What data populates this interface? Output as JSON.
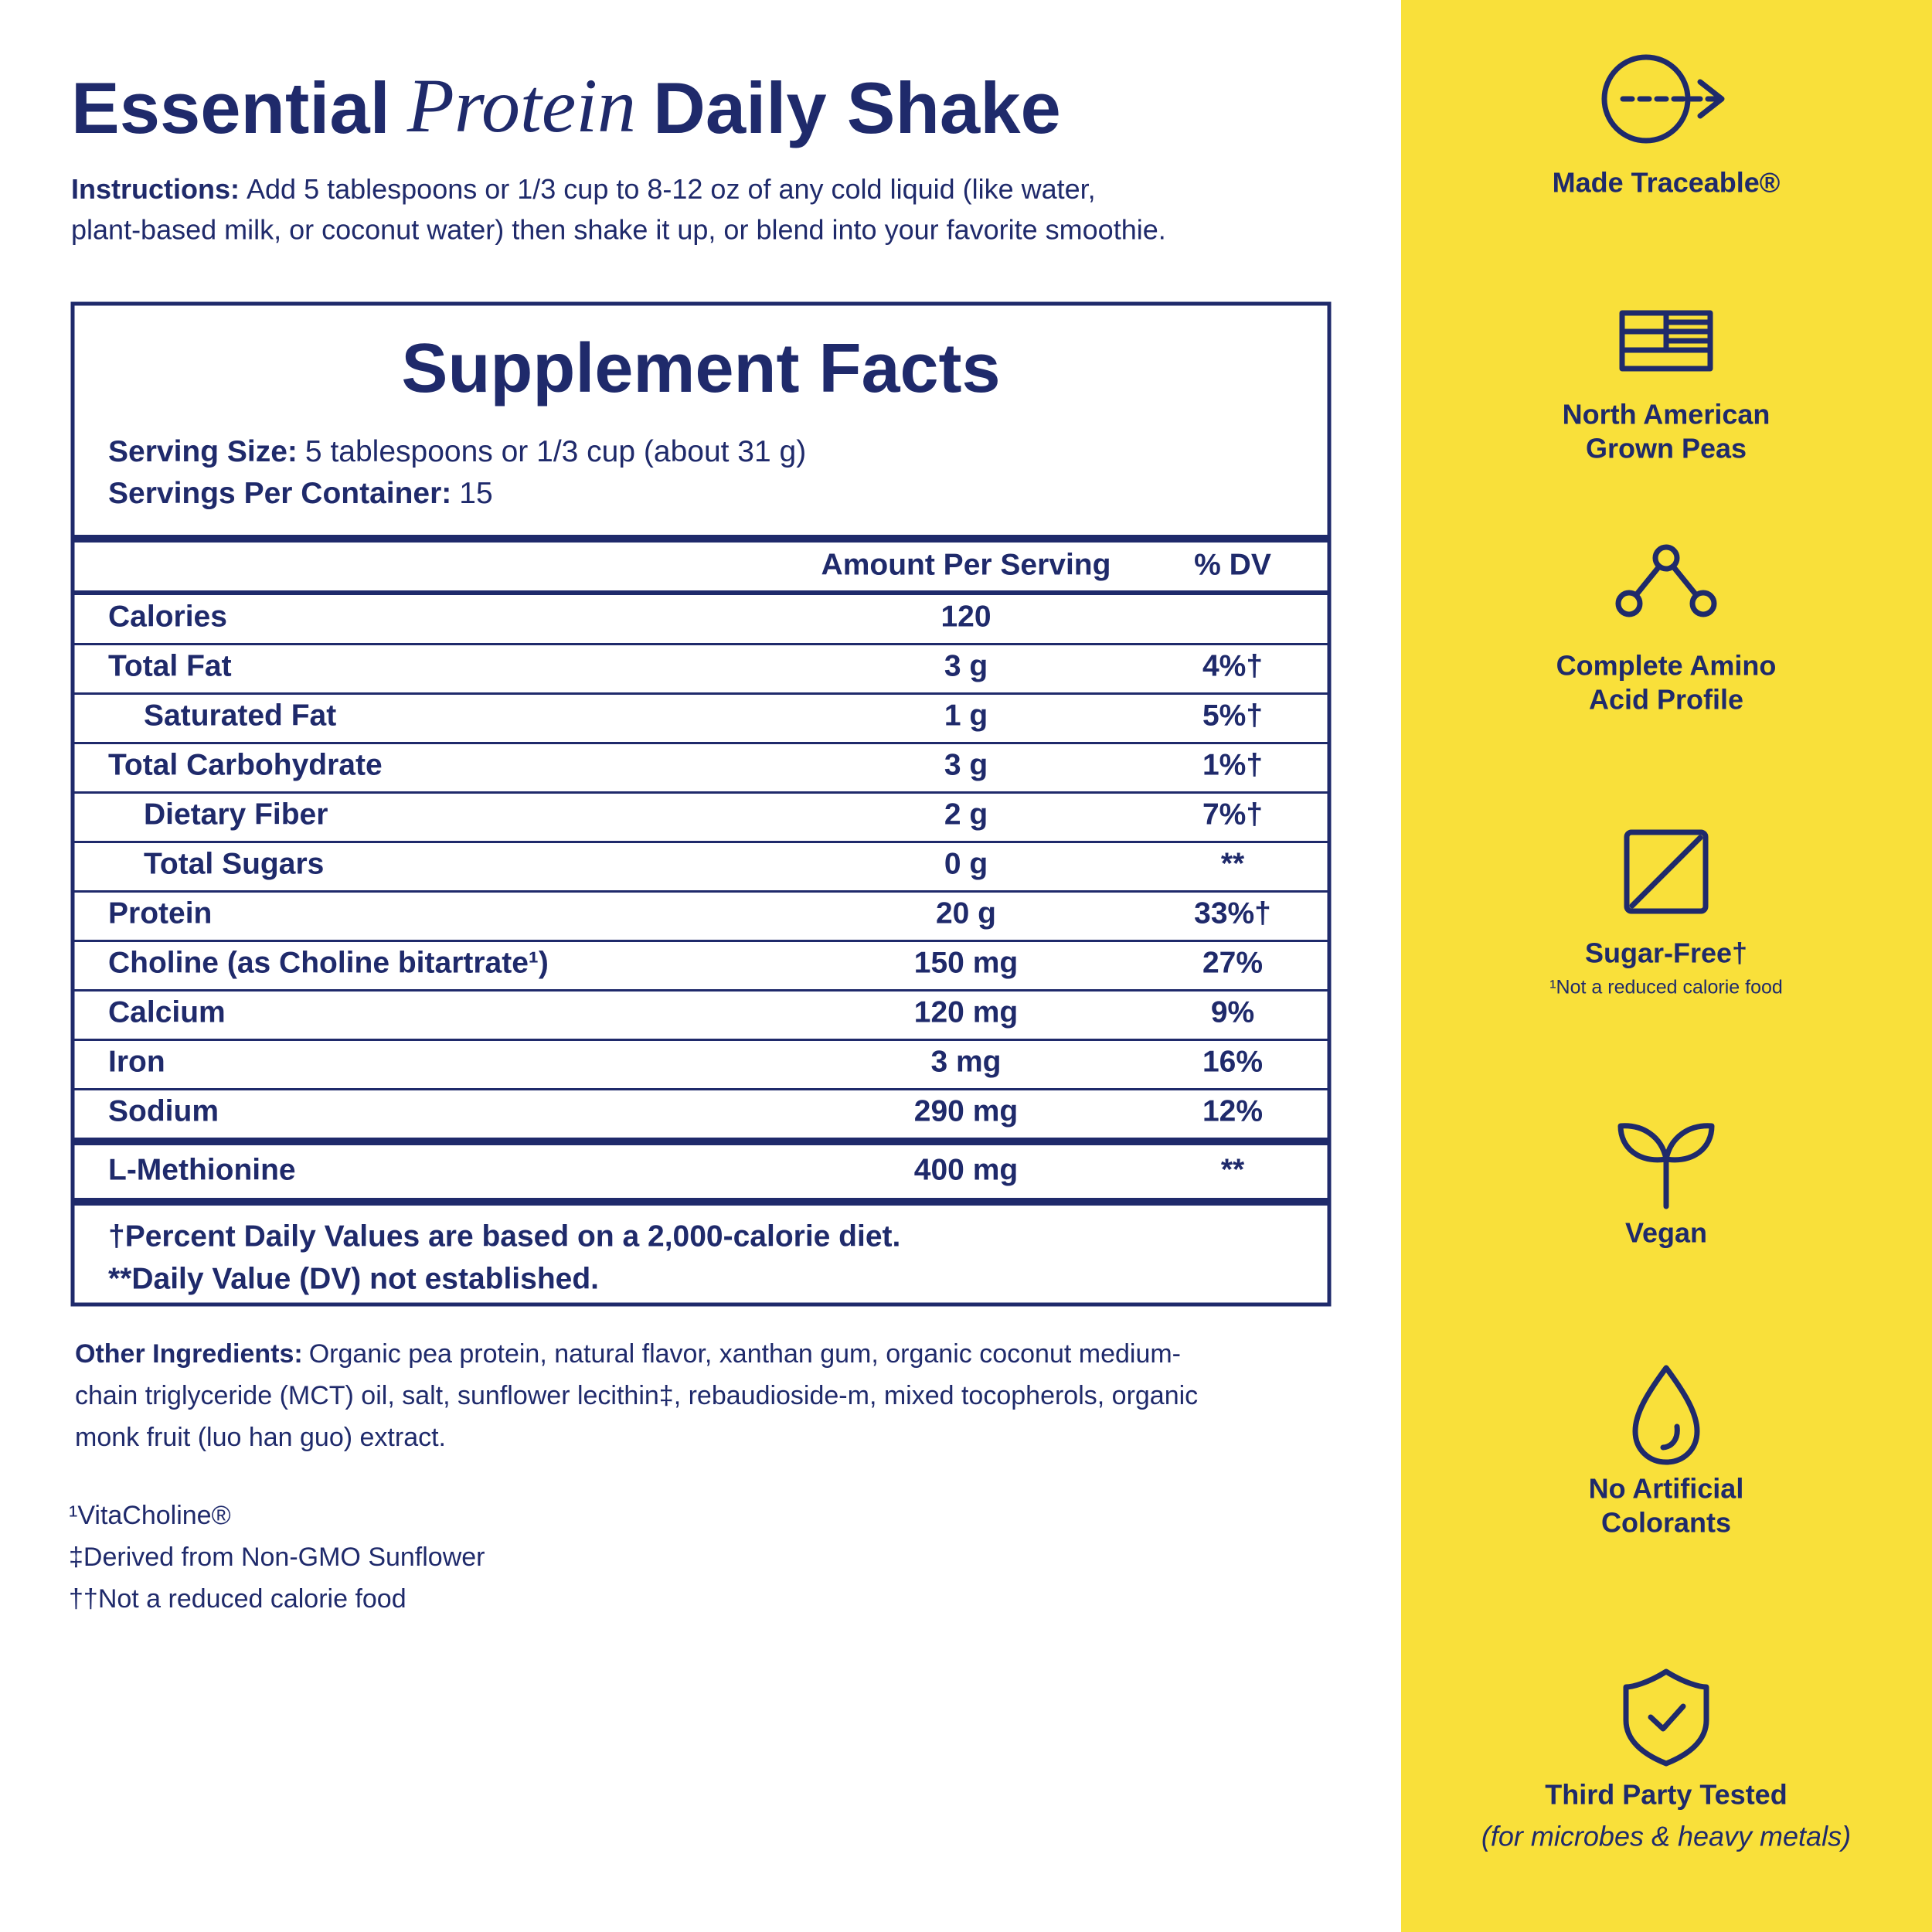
{
  "header": {
    "title": [
      "Essential",
      "Protein",
      "Daily Shake"
    ],
    "instructions": {
      "label": "Instructions:",
      "lines": [
        "Add 5 tablespoons or 1/3 cup to 8-12 oz of any cold liquid (like water,",
        "plant-based milk, or coconut water) then shake it up, or blend into your favorite smoothie."
      ]
    }
  },
  "facts": {
    "title": "Supplement Facts",
    "serving_size": {
      "label": "Serving Size:",
      "value": "5 tablespoons or 1/3 cup (about 31 g)"
    },
    "servings": {
      "label": "Servings Per Container:",
      "value": "15"
    },
    "columns": [
      "Amount Per Serving",
      "% DV"
    ],
    "rows": [
      [
        "Calories",
        "120",
        null
      ],
      [
        "Total Fat",
        "3 g",
        "4%†"
      ],
      [
        "Saturated Fat",
        "1 g",
        "5%†"
      ],
      [
        "Total Carbohydrate",
        "3 g",
        "1%†"
      ],
      [
        "Dietary Fiber",
        "2 g",
        "7%†"
      ],
      [
        "Total Sugars",
        "0 g",
        "**"
      ],
      [
        "Protein",
        "20 g",
        "33%†"
      ],
      [
        "Choline (as Choline bitartrate¹)",
        "150 mg",
        "27%"
      ],
      [
        "Calcium",
        "120 mg",
        "9%"
      ],
      [
        "Iron",
        "3 mg",
        "16%"
      ],
      [
        "Sodium",
        "290 mg",
        "12%"
      ]
    ],
    "additional": [
      [
        "L-Methionine",
        "400 mg",
        "**"
      ]
    ],
    "footnotes": [
      "†Percent Daily Values are based on a 2,000-calorie diet.",
      "**Daily Value (DV) not established."
    ]
  },
  "ingredients": {
    "label": "Other Ingredients:",
    "lines": [
      "Organic pea protein, natural flavor, xanthan gum, organic coconut medium-",
      "chain triglyceride (MCT) oil, salt, sunflower lecithin‡, rebaudioside-m, mixed tocopherols, organic",
      "monk fruit (luo han guo) extract."
    ]
  },
  "notes": [
    "¹VitaCholine®",
    "‡Derived from Non-GMO Sunflower",
    "††Not a reduced calorie food"
  ],
  "badges": [
    {
      "lines": [
        "Made Traceable®"
      ]
    },
    {
      "lines": [
        "North American",
        "Grown Peas"
      ]
    },
    {
      "lines": [
        "Complete Amino",
        "Acid Profile"
      ]
    },
    {
      "lines": [
        "Sugar-Free†"
      ],
      "note": "¹Not a reduced calorie food"
    },
    {
      "lines": [
        "Vegan"
      ]
    },
    {
      "lines": [
        "No Artificial",
        "Colorants"
      ]
    },
    {
      "lines": [
        "Third Party Tested"
      ],
      "note": "(for microbes & heavy metals)"
    }
  ]
}
